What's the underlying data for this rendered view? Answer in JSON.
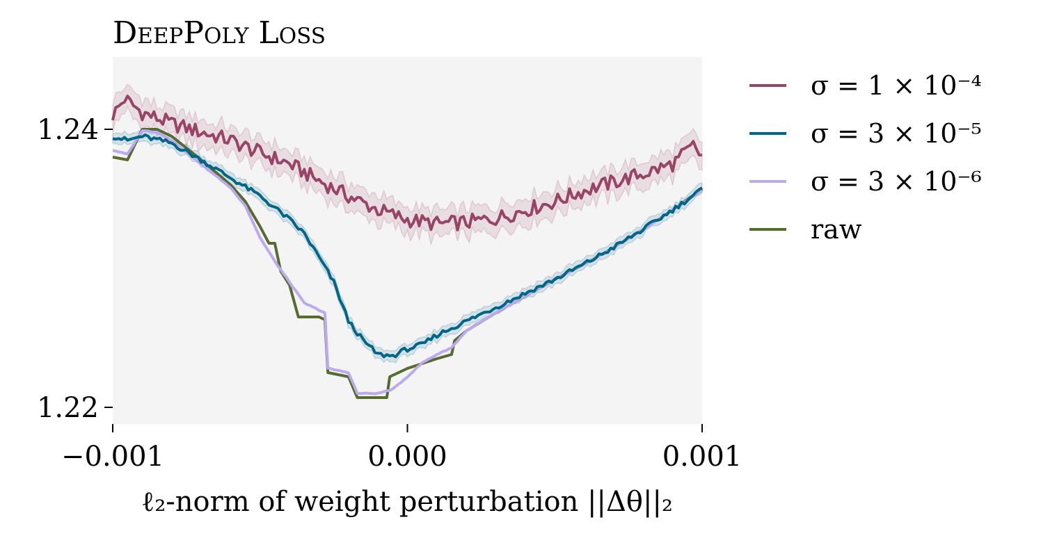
{
  "chart_data": {
    "type": "line",
    "title": "DeepPoly Loss",
    "xlabel": "ℓ₂-norm of weight perturbation ||Δθ||₂",
    "ylabel": "",
    "xlim": [
      -0.001,
      0.001
    ],
    "ylim": [
      1.2188,
      1.2452
    ],
    "x_ticks": [
      -0.001,
      0.0,
      0.001
    ],
    "x_tick_labels": [
      "−0.001",
      "0.000",
      "0.001"
    ],
    "y_ticks": [
      1.22,
      1.24
    ],
    "y_tick_labels": [
      "1.22",
      "1.24"
    ],
    "grid": false,
    "background": "#f4f4f4",
    "legend_position": "outside-right-top",
    "series": [
      {
        "name": "σ = 1 × 10⁻⁴",
        "color": "#994466",
        "band": true,
        "points": [
          [
            -0.001,
            1.241
          ],
          [
            -0.00096,
            1.2422
          ],
          [
            -0.0009,
            1.2412
          ],
          [
            -0.0008,
            1.2404
          ],
          [
            -0.0007,
            1.2398
          ],
          [
            -0.0006,
            1.2392
          ],
          [
            -0.0005,
            1.2383
          ],
          [
            -0.0004,
            1.2375
          ],
          [
            -0.0003,
            1.2363
          ],
          [
            -0.0002,
            1.2352
          ],
          [
            -0.0001,
            1.2342
          ],
          [
            0.0,
            1.2335
          ],
          [
            0.0001,
            1.2332
          ],
          [
            0.0002,
            1.2333
          ],
          [
            0.0003,
            1.2336
          ],
          [
            0.0004,
            1.2342
          ],
          [
            0.0005,
            1.2348
          ],
          [
            0.0006,
            1.2356
          ],
          [
            0.0007,
            1.2362
          ],
          [
            0.0008,
            1.2368
          ],
          [
            0.0009,
            1.2375
          ],
          [
            0.00097,
            1.2388
          ],
          [
            0.001,
            1.238
          ]
        ]
      },
      {
        "name": "σ = 3 × 10⁻⁵",
        "color": "#006688",
        "band": true,
        "points": [
          [
            -0.001,
            1.2395
          ],
          [
            -0.00095,
            1.2392
          ],
          [
            -0.0009,
            1.2395
          ],
          [
            -0.0008,
            1.239
          ],
          [
            -0.0007,
            1.2378
          ],
          [
            -0.0006,
            1.2365
          ],
          [
            -0.0005,
            1.2352
          ],
          [
            -0.0004,
            1.2335
          ],
          [
            -0.00035,
            1.2325
          ],
          [
            -0.0003,
            1.2308
          ],
          [
            -0.00025,
            1.229
          ],
          [
            -0.0002,
            1.2262
          ],
          [
            -0.00015,
            1.2248
          ],
          [
            -0.0001,
            1.2238
          ],
          [
            -5e-05,
            1.2237
          ],
          [
            0.0,
            1.2242
          ],
          [
            5e-05,
            1.2245
          ],
          [
            0.0001,
            1.2252
          ],
          [
            0.0002,
            1.2262
          ],
          [
            0.0003,
            1.2272
          ],
          [
            0.0004,
            1.2282
          ],
          [
            0.0005,
            1.2292
          ],
          [
            0.0006,
            1.2303
          ],
          [
            0.0007,
            1.2315
          ],
          [
            0.0008,
            1.2328
          ],
          [
            0.0009,
            1.2342
          ],
          [
            0.001,
            1.2357
          ]
        ]
      },
      {
        "name": "σ = 3 × 10⁻⁶",
        "color": "#bbaaee",
        "band": false,
        "points": [
          [
            -0.001,
            1.2385
          ],
          [
            -0.00095,
            1.2382
          ],
          [
            -0.0009,
            1.2399
          ],
          [
            -0.00085,
            1.2398
          ],
          [
            -0.0008,
            1.2392
          ],
          [
            -0.0007,
            1.2375
          ],
          [
            -0.0006,
            1.2358
          ],
          [
            -0.00055,
            1.2345
          ],
          [
            -0.0005,
            1.2322
          ],
          [
            -0.00045,
            1.2305
          ],
          [
            -0.0004,
            1.229
          ],
          [
            -0.00035,
            1.2275
          ],
          [
            -0.0003,
            1.227
          ],
          [
            -0.00028,
            1.2268
          ],
          [
            -0.00027,
            1.2228
          ],
          [
            -0.0002,
            1.2225
          ],
          [
            -0.00017,
            1.221
          ],
          [
            -0.0001,
            1.221
          ],
          [
            -5e-05,
            1.2213
          ],
          [
            0.0,
            1.2222
          ],
          [
            5e-05,
            1.2232
          ],
          [
            0.0001,
            1.2238
          ],
          [
            0.00015,
            1.2243
          ],
          [
            0.0002,
            1.2255
          ],
          [
            0.0003,
            1.2268
          ],
          [
            0.0004,
            1.228
          ],
          [
            0.0005,
            1.2292
          ],
          [
            0.0006,
            1.2303
          ],
          [
            0.0007,
            1.2315
          ],
          [
            0.0008,
            1.2328
          ],
          [
            0.0009,
            1.2342
          ],
          [
            0.001,
            1.2356
          ]
        ]
      },
      {
        "name": "raw",
        "color": "#556b2f",
        "band": false,
        "points": [
          [
            -0.001,
            1.238
          ],
          [
            -0.00095,
            1.2378
          ],
          [
            -0.0009,
            1.24
          ],
          [
            -0.00085,
            1.24
          ],
          [
            -0.0008,
            1.2395
          ],
          [
            -0.0007,
            1.2378
          ],
          [
            -0.0006,
            1.236
          ],
          [
            -0.00055,
            1.2348
          ],
          [
            -0.0005,
            1.233
          ],
          [
            -0.00047,
            1.2318
          ],
          [
            -0.00045,
            1.2318
          ],
          [
            -0.00043,
            1.2298
          ],
          [
            -0.0004,
            1.2288
          ],
          [
            -0.00037,
            1.2265
          ],
          [
            -0.0003,
            1.2265
          ],
          [
            -0.00028,
            1.2263
          ],
          [
            -0.00027,
            1.2225
          ],
          [
            -0.0002,
            1.2222
          ],
          [
            -0.00017,
            1.2207
          ],
          [
            -7e-05,
            1.2207
          ],
          [
            -6e-05,
            1.2222
          ],
          [
            0.0,
            1.2228
          ],
          [
            0.0001,
            1.2235
          ],
          [
            0.00015,
            1.2238
          ],
          [
            0.00016,
            1.2248
          ],
          [
            0.0002,
            1.2255
          ],
          [
            0.0003,
            1.2268
          ],
          [
            0.0004,
            1.228
          ],
          [
            0.0005,
            1.2292
          ],
          [
            0.0006,
            1.2303
          ],
          [
            0.0007,
            1.2315
          ],
          [
            0.0008,
            1.2328
          ],
          [
            0.0009,
            1.2342
          ],
          [
            0.001,
            1.2357
          ]
        ]
      }
    ]
  }
}
